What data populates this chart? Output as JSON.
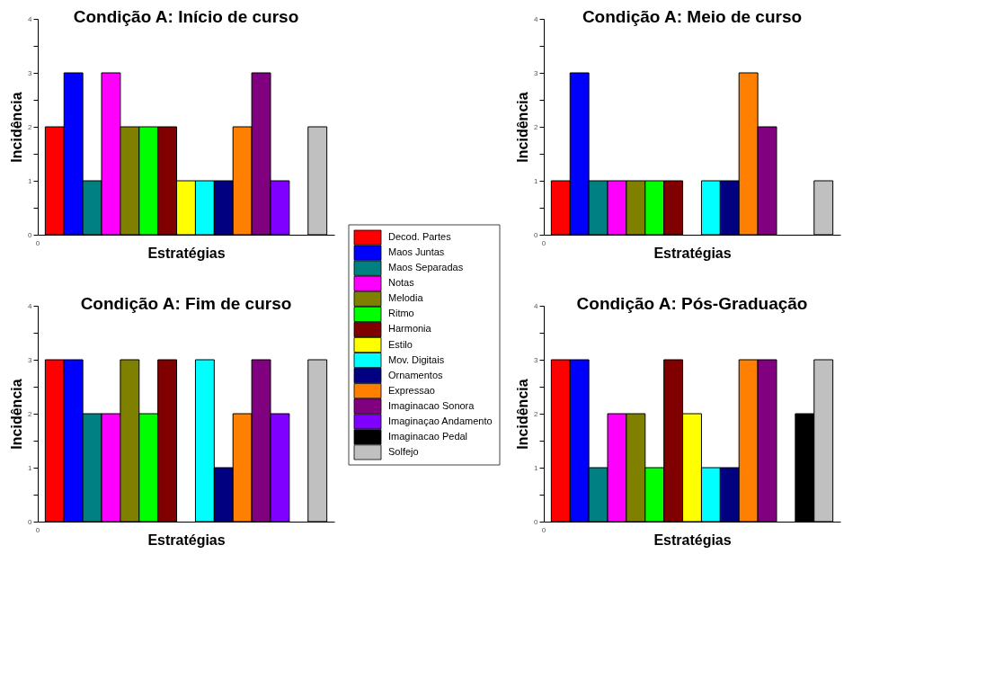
{
  "chart_data": [
    {
      "type": "bar",
      "title": "Condição A: Início de curso",
      "xlabel": "Estratégias",
      "ylabel": "Incidência",
      "categories": [
        null
      ],
      "ylim": [
        0,
        4
      ],
      "yticks": [
        0,
        {
          "value": 0.5,
          "label": null
        },
        1,
        {
          "value": 1.5,
          "label": null
        },
        2,
        {
          "value": 2.5,
          "label": null
        },
        3,
        {
          "value": 3.5,
          "label": null
        },
        4
      ],
      "annotations": [
        "0"
      ],
      "legend": "right",
      "series": [
        {
          "name": "Decod. Partes",
          "color": "#ff0000",
          "values": [
            2
          ]
        },
        {
          "name": "Maos Juntas",
          "color": "#0000ff",
          "values": [
            3
          ]
        },
        {
          "name": "Maos Separadas",
          "color": "#008080",
          "values": [
            1
          ]
        },
        {
          "name": "Notas",
          "color": "#ff00ff",
          "values": [
            3
          ]
        },
        {
          "name": "Melodia",
          "color": "#808000",
          "values": [
            2
          ]
        },
        {
          "name": "Ritmo",
          "color": "#00ff00",
          "values": [
            2
          ]
        },
        {
          "name": "Harmonia",
          "color": "#800000",
          "values": [
            2
          ]
        },
        {
          "name": "Estilo",
          "color": "#ffff00",
          "values": [
            1
          ]
        },
        {
          "name": "Mov. Digitais",
          "color": "#00ffff",
          "values": [
            1
          ]
        },
        {
          "name": "Ornamentos",
          "color": "#000080",
          "values": [
            1
          ]
        },
        {
          "name": "Expressao",
          "color": "#ff8000",
          "values": [
            2
          ]
        },
        {
          "name": "Imaginacao Sonora",
          "color": "#800080",
          "values": [
            3
          ]
        },
        {
          "name": "Imaginaçao Andamento",
          "color": "#8000ff",
          "values": [
            1
          ]
        },
        {
          "name": "Imaginacao Pedal",
          "color": "#000000",
          "values": [
            null
          ]
        },
        {
          "name": "Solfejo",
          "color": "#c0c0c0",
          "values": [
            2
          ]
        }
      ]
    },
    {
      "type": "bar",
      "title": "Condição A: Meio de curso",
      "xlabel": "Estratégias",
      "ylabel": "Incidência",
      "categories": [
        null
      ],
      "ylim": [
        0,
        4
      ],
      "yticks": [
        0,
        {
          "value": 0.5,
          "label": null
        },
        1,
        {
          "value": 1.5,
          "label": null
        },
        2,
        {
          "value": 2.5,
          "label": null
        },
        3,
        {
          "value": 3.5,
          "label": null
        },
        4
      ],
      "annotations": [
        "0"
      ],
      "series": [
        {
          "color": "#ff0000",
          "values": [
            1
          ]
        },
        {
          "color": "#0000ff",
          "values": [
            3
          ]
        },
        {
          "color": "#008080",
          "values": [
            1
          ]
        },
        {
          "color": "#ff00ff",
          "values": [
            1
          ]
        },
        {
          "color": "#808000",
          "values": [
            1
          ]
        },
        {
          "color": "#00ff00",
          "values": [
            1
          ]
        },
        {
          "color": "#800000",
          "values": [
            1
          ]
        },
        {
          "values": [
            null
          ]
        },
        {
          "color": "#00ffff",
          "values": [
            1
          ]
        },
        {
          "color": "#000080",
          "values": [
            1
          ]
        },
        {
          "color": "#ff8000",
          "values": [
            3
          ]
        },
        {
          "color": "#800080",
          "values": [
            2
          ]
        },
        {
          "values": [
            null
          ]
        },
        {
          "values": [
            null
          ]
        },
        {
          "color": "#c0c0c0",
          "values": [
            1
          ]
        }
      ]
    },
    {
      "type": "bar",
      "title": "Condição A: Fim de curso",
      "xlabel": "Estratégias",
      "ylabel": "Incidência",
      "categories": [
        null
      ],
      "ylim": [
        0,
        4
      ],
      "yticks": [
        0,
        {
          "value": 0.5,
          "label": null
        },
        1,
        {
          "value": 1.5,
          "label": null
        },
        2,
        {
          "value": 2.5,
          "label": null
        },
        3,
        {
          "value": 3.5,
          "label": null
        },
        4
      ],
      "annotations": [
        "0"
      ],
      "series": [
        {
          "color": "#ff0000",
          "values": [
            3
          ]
        },
        {
          "color": "#0000ff",
          "values": [
            3
          ]
        },
        {
          "color": "#008080",
          "values": [
            2
          ]
        },
        {
          "color": "#ff00ff",
          "values": [
            2
          ]
        },
        {
          "color": "#808000",
          "values": [
            3
          ]
        },
        {
          "color": "#00ff00",
          "values": [
            2
          ]
        },
        {
          "color": "#800000",
          "values": [
            3
          ]
        },
        {
          "values": [
            null
          ]
        },
        {
          "color": "#00ffff",
          "values": [
            3
          ]
        },
        {
          "color": "#000080",
          "values": [
            1
          ]
        },
        {
          "color": "#ff8000",
          "values": [
            2
          ]
        },
        {
          "color": "#800080",
          "values": [
            3
          ]
        },
        {
          "color": "#8000ff",
          "values": [
            2
          ]
        },
        {
          "values": [
            null
          ]
        },
        {
          "color": "#c0c0c0",
          "values": [
            3
          ]
        }
      ]
    },
    {
      "type": "bar",
      "title": "Condição A: Pós-Graduação",
      "xlabel": "Estratégias",
      "ylabel": "Incidência",
      "categories": [
        null
      ],
      "ylim": [
        0,
        4
      ],
      "yticks": [
        0,
        {
          "value": 0.5,
          "label": null
        },
        1,
        {
          "value": 1.5,
          "label": null
        },
        2,
        {
          "value": 2.5,
          "label": null
        },
        3,
        {
          "value": 3.5,
          "label": null
        },
        4
      ],
      "annotations": [
        "0"
      ],
      "series": [
        {
          "color": "#ff0000",
          "values": [
            3
          ]
        },
        {
          "color": "#0000ff",
          "values": [
            3
          ]
        },
        {
          "color": "#008080",
          "values": [
            1
          ]
        },
        {
          "color": "#ff00ff",
          "values": [
            2
          ]
        },
        {
          "color": "#808000",
          "values": [
            2
          ]
        },
        {
          "color": "#00ff00",
          "values": [
            1
          ]
        },
        {
          "color": "#800000",
          "values": [
            3
          ]
        },
        {
          "color": "#ffff00",
          "values": [
            2
          ]
        },
        {
          "color": "#00ffff",
          "values": [
            1
          ]
        },
        {
          "color": "#000080",
          "values": [
            1
          ]
        },
        {
          "color": "#ff8000",
          "values": [
            3
          ]
        },
        {
          "color": "#800080",
          "values": [
            3
          ]
        },
        {
          "values": [
            null
          ]
        },
        {
          "color": "#000000",
          "values": [
            2
          ]
        },
        {
          "color": "#c0c0c0",
          "values": [
            3
          ]
        }
      ]
    }
  ]
}
